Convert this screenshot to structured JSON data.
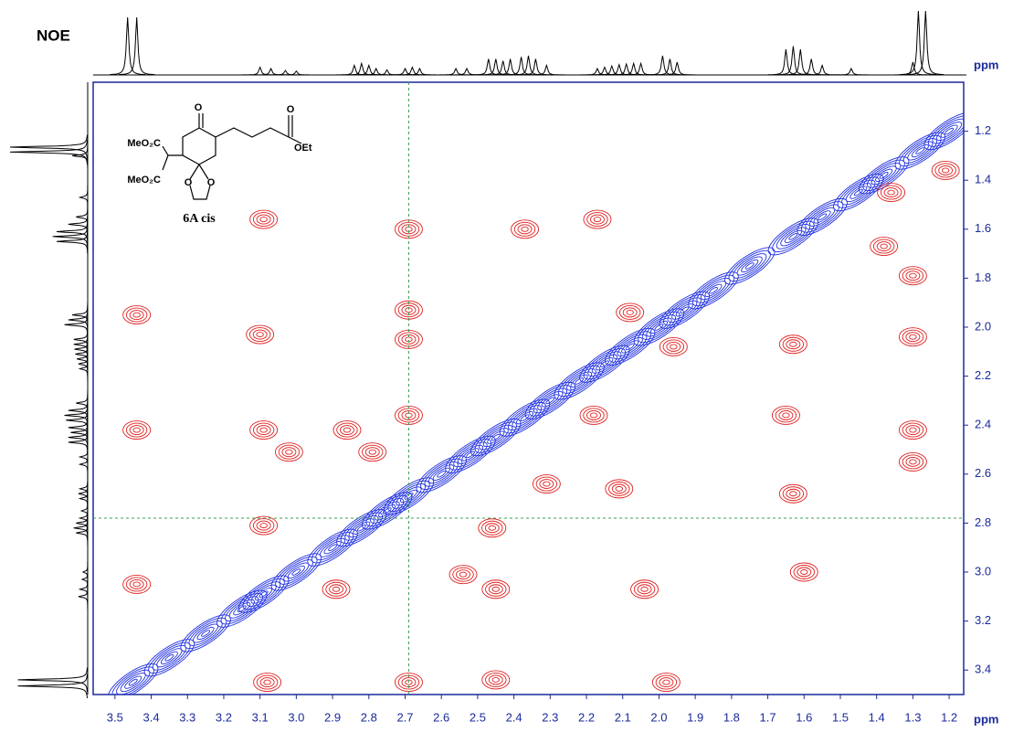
{
  "chart_data": {
    "type": "contour",
    "title": "NOE",
    "xlabel": "ppm",
    "ylabel": "ppm",
    "xlim": [
      3.56,
      1.16
    ],
    "ylim": [
      1.0,
      3.5
    ],
    "xticks": [
      3.5,
      3.4,
      3.3,
      3.2,
      3.1,
      {
        "value": 3,
        "label": "3.0"
      },
      2.9,
      2.8,
      2.7,
      2.6,
      2.5,
      2.4,
      2.3,
      2.2,
      2.1,
      {
        "value": 2,
        "label": "2.0"
      },
      1.9,
      1.8,
      1.7,
      1.6,
      1.5,
      1.4,
      1.3,
      1.2
    ],
    "yticks": [
      1.2,
      1.4,
      1.6,
      1.8,
      {
        "value": 2,
        "label": "2.0"
      },
      2.2,
      2.4,
      2.6,
      2.8,
      {
        "value": 3,
        "label": "3.0"
      },
      3.2,
      3.4
    ],
    "crosshair": {
      "x": 2.69,
      "y": 2.78,
      "color": "#3aa050"
    },
    "series": [
      {
        "color": "#2030e0",
        "diagonal": true,
        "x": [
          3.45,
          3.35,
          3.25,
          3.15,
          3.09,
          3.0,
          2.9,
          2.82,
          2.75,
          2.69,
          2.6,
          2.52,
          2.45,
          2.37,
          2.3,
          2.22,
          2.15,
          2.08,
          2.0,
          1.93,
          1.85,
          1.75,
          1.63,
          1.55,
          1.45,
          1.38,
          1.28,
          1.2
        ],
        "y": [
          3.45,
          3.35,
          3.25,
          3.15,
          3.09,
          3.0,
          2.9,
          2.82,
          2.75,
          2.69,
          2.6,
          2.52,
          2.45,
          2.37,
          2.3,
          2.22,
          2.15,
          2.08,
          2.0,
          1.93,
          1.85,
          1.75,
          1.63,
          1.55,
          1.45,
          1.38,
          1.28,
          1.2
        ]
      },
      {
        "color": "#e02020",
        "diagonal": false,
        "x": [
          3.44,
          3.44,
          3.44,
          3.09,
          3.1,
          3.09,
          3.02,
          3.09,
          2.69,
          2.69,
          2.69,
          2.69,
          2.86,
          2.79,
          2.46,
          2.45,
          2.54,
          2.37,
          2.17,
          1.96,
          2.08,
          2.18,
          2.11,
          2.31,
          2.04,
          1.98,
          2.45,
          3.08,
          2.69,
          2.89,
          1.63,
          1.65,
          1.63,
          1.38,
          1.6,
          1.21,
          1.3,
          1.3,
          1.3,
          1.3,
          1.36
        ],
        "y": [
          1.95,
          2.42,
          3.05,
          1.56,
          2.03,
          2.42,
          2.51,
          2.81,
          1.6,
          1.93,
          2.05,
          2.36,
          2.42,
          2.51,
          2.82,
          3.07,
          3.01,
          1.6,
          1.56,
          2.08,
          1.94,
          2.36,
          2.66,
          2.64,
          3.07,
          3.45,
          3.44,
          3.45,
          3.45,
          3.07,
          2.07,
          2.36,
          2.68,
          1.67,
          3.0,
          1.36,
          2.42,
          2.55,
          2.04,
          1.79,
          1.45
        ]
      }
    ],
    "projection": {
      "x": [
        3.465,
        3.44,
        3.1,
        3.07,
        3.03,
        3.0,
        2.84,
        2.82,
        2.8,
        2.78,
        2.75,
        2.7,
        2.68,
        2.66,
        2.56,
        2.53,
        2.47,
        2.45,
        2.43,
        2.41,
        2.38,
        2.36,
        2.34,
        2.31,
        2.17,
        2.15,
        2.13,
        2.11,
        2.09,
        2.07,
        2.05,
        1.99,
        1.97,
        1.95,
        1.65,
        1.63,
        1.61,
        1.58,
        1.55,
        1.47,
        1.3,
        1.285,
        1.265
      ],
      "heights": [
        0.9,
        0.9,
        0.12,
        0.1,
        0.07,
        0.06,
        0.15,
        0.18,
        0.15,
        0.1,
        0.08,
        0.1,
        0.12,
        0.1,
        0.1,
        0.1,
        0.25,
        0.25,
        0.22,
        0.25,
        0.28,
        0.3,
        0.25,
        0.15,
        0.1,
        0.12,
        0.14,
        0.16,
        0.17,
        0.18,
        0.18,
        0.3,
        0.25,
        0.2,
        0.4,
        0.45,
        0.4,
        0.25,
        0.15,
        0.1,
        0.2,
        1.0,
        1.0
      ]
    }
  },
  "structure": {
    "ketone_o": "O",
    "ester_o": "O",
    "ester_oet": "OEt",
    "ester1": "MeO₂C",
    "ester2": "MeO₂C",
    "ring_o1": "O",
    "ring_o2": "O",
    "caption": "6A cis"
  }
}
